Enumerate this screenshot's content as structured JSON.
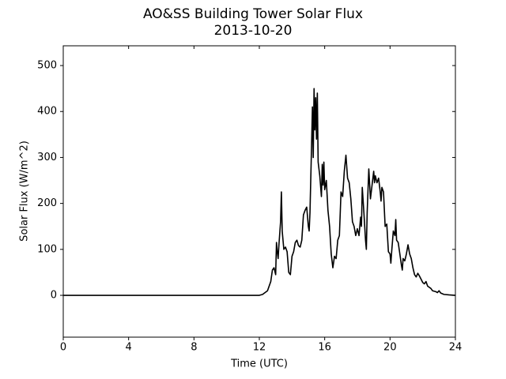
{
  "chart_data": {
    "type": "line",
    "title": "AO&SS Building Tower Solar Flux",
    "subtitle": "2013-10-20",
    "x_label": "Time (UTC)",
    "y_label": "Solar Flux (W/m^2)",
    "xlim": [
      0,
      24
    ],
    "xticks": [
      0,
      4,
      8,
      12,
      16,
      20,
      24
    ],
    "ylim": [
      -91,
      543
    ],
    "yticks": [
      0,
      100,
      200,
      300,
      400,
      500
    ],
    "series": [
      {
        "name": "Solar Flux",
        "color": "#000000",
        "x": [
          0,
          12,
          12.2,
          12.5,
          12.7,
          12.8,
          12.9,
          13.0,
          13.05,
          13.1,
          13.15,
          13.2,
          13.3,
          13.35,
          13.4,
          13.5,
          13.6,
          13.7,
          13.8,
          13.9,
          14.0,
          14.1,
          14.2,
          14.3,
          14.4,
          14.5,
          14.6,
          14.7,
          14.8,
          14.9,
          15.0,
          15.05,
          15.1,
          15.2,
          15.25,
          15.3,
          15.35,
          15.4,
          15.45,
          15.5,
          15.55,
          15.6,
          15.7,
          15.8,
          15.85,
          15.9,
          15.95,
          16.0,
          16.1,
          16.2,
          16.3,
          16.4,
          16.5,
          16.6,
          16.7,
          16.8,
          16.9,
          17.0,
          17.1,
          17.2,
          17.3,
          17.4,
          17.5,
          17.6,
          17.7,
          17.8,
          17.9,
          18.0,
          18.1,
          18.2,
          18.25,
          18.3,
          18.4,
          18.5,
          18.55,
          18.6,
          18.7,
          18.8,
          18.9,
          19.0,
          19.05,
          19.1,
          19.2,
          19.3,
          19.4,
          19.45,
          19.5,
          19.6,
          19.7,
          19.8,
          19.9,
          20.0,
          20.05,
          20.1,
          20.2,
          20.3,
          20.35,
          20.4,
          20.5,
          20.6,
          20.7,
          20.75,
          20.8,
          20.9,
          21.0,
          21.1,
          21.2,
          21.3,
          21.4,
          21.5,
          21.6,
          21.7,
          21.8,
          21.9,
          22.0,
          22.1,
          22.2,
          22.3,
          22.5,
          22.6,
          22.8,
          22.9,
          23.0,
          23.1,
          23.3,
          23.6,
          24
        ],
        "values": [
          0,
          0,
          2,
          10,
          30,
          55,
          60,
          45,
          115,
          95,
          80,
          110,
          160,
          225,
          140,
          100,
          105,
          95,
          50,
          45,
          85,
          95,
          115,
          120,
          108,
          105,
          120,
          175,
          185,
          192,
          150,
          140,
          180,
          330,
          410,
          300,
          450,
          360,
          430,
          340,
          440,
          290,
          260,
          215,
          285,
          240,
          290,
          230,
          250,
          185,
          150,
          90,
          60,
          85,
          80,
          120,
          130,
          225,
          215,
          270,
          305,
          255,
          245,
          210,
          160,
          150,
          130,
          145,
          130,
          170,
          150,
          235,
          180,
          120,
          100,
          180,
          275,
          210,
          240,
          270,
          245,
          260,
          245,
          255,
          225,
          205,
          235,
          225,
          150,
          155,
          95,
          90,
          70,
          95,
          140,
          130,
          165,
          120,
          115,
          90,
          65,
          55,
          80,
          75,
          90,
          110,
          90,
          80,
          60,
          45,
          40,
          48,
          42,
          35,
          28,
          25,
          30,
          20,
          15,
          10,
          8,
          6,
          10,
          5,
          2,
          1,
          0
        ]
      }
    ]
  }
}
